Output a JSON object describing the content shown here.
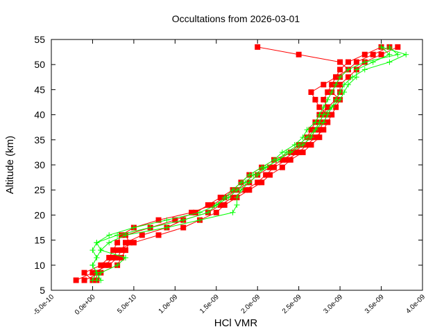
{
  "chart_data": {
    "type": "line",
    "title": "Occultations from 2026-03-01",
    "xlabel": "HCl VMR",
    "ylabel": "Altitude (km)",
    "xlim": [
      -5e-10,
      4e-09
    ],
    "ylim": [
      5,
      55
    ],
    "xticks": [
      "-5.0e-10",
      "0.0e+00",
      "5.0e-10",
      "1.0e-09",
      "1.5e-09",
      "2.0e-09",
      "2.5e-09",
      "3.0e-09",
      "3.5e-09",
      "4.0e-09"
    ],
    "xtick_values": [
      -5e-10,
      0,
      5e-10,
      1e-09,
      1.5e-09,
      2e-09,
      2.5e-09,
      3e-09,
      3.5e-09,
      4e-09
    ],
    "yticks": [
      5,
      10,
      15,
      20,
      25,
      30,
      35,
      40,
      45,
      50,
      55
    ],
    "grid": false,
    "legend": "none",
    "altitude": [
      7,
      8.5,
      10,
      11.5,
      13,
      14.5,
      16,
      17.5,
      19,
      20.5,
      22,
      23.5,
      25,
      26.5,
      28,
      29.5,
      31,
      32.5,
      34,
      35.5,
      37,
      38.5,
      40,
      41.5,
      43,
      44.5,
      46,
      47.5,
      49,
      50.5,
      52,
      53.5
    ],
    "series": [
      {
        "color": "#ff0000",
        "marker": "square",
        "values": [
          0,
          -1e-10,
          1e-10,
          2e-10,
          2.5e-10,
          3e-10,
          3.5e-10,
          5e-10,
          8e-10,
          1.2e-09,
          1.45e-09,
          1.6e-09,
          1.75e-09,
          1.9e-09,
          2e-09,
          2.15e-09,
          2.3e-09,
          2.45e-09,
          2.55e-09,
          2.65e-09,
          2.7e-09,
          2.75e-09,
          2.8e-09,
          2.85e-09,
          2.8e-09,
          2.85e-09,
          2.9e-09,
          2.95e-09,
          3e-09,
          3.1e-09,
          3.3e-09,
          3.5e-09
        ]
      },
      {
        "color": "#ff0000",
        "marker": "square",
        "values": [
          -2e-10,
          0,
          2e-10,
          3e-10,
          3.5e-10,
          4e-10,
          6e-10,
          9e-10,
          1.1e-09,
          1.4e-09,
          1.55e-09,
          1.7e-09,
          1.85e-09,
          2e-09,
          2.1e-09,
          2.2e-09,
          2.35e-09,
          2.5e-09,
          2.6e-09,
          2.7e-09,
          2.8e-09,
          2.85e-09,
          2.9e-09,
          2.95e-09,
          3e-09,
          2.9e-09,
          2.95e-09,
          3e-09,
          3.1e-09,
          3.2e-09,
          3.4e-09,
          3.6e-09
        ]
      },
      {
        "color": "#ff0000",
        "marker": "square",
        "values": [
          5e-11,
          5e-11,
          1.5e-10,
          2.5e-10,
          3e-10,
          5e-10,
          8e-10,
          1.1e-09,
          1.3e-09,
          1.5e-09,
          1.6e-09,
          1.75e-09,
          1.9e-09,
          2.05e-09,
          2.15e-09,
          2.3e-09,
          2.4e-09,
          2.55e-09,
          2.65e-09,
          2.75e-09,
          2.75e-09,
          2.8e-09,
          2.85e-09,
          2.75e-09,
          2.7e-09,
          2.65e-09,
          2.8e-09,
          2.95e-09,
          3.1e-09,
          3e-09,
          2.5e-09,
          2e-09
        ]
      },
      {
        "color": "#ff0000",
        "marker": "square",
        "values": [
          -1e-10,
          1e-10,
          3e-10,
          3.5e-10,
          4e-10,
          4.5e-10,
          4e-10,
          7e-10,
          1e-09,
          1.25e-09,
          1.4e-09,
          1.55e-09,
          1.7e-09,
          1.8e-09,
          1.9e-09,
          2.05e-09,
          2.2e-09,
          2.4e-09,
          2.5e-09,
          2.6e-09,
          2.65e-09,
          2.7e-09,
          2.75e-09,
          2.85e-09,
          2.95e-09,
          3e-09,
          3e-09,
          3.1e-09,
          3.2e-09,
          3.3e-09,
          3.5e-09,
          3.7e-09
        ]
      },
      {
        "color": "#00ff00",
        "marker": "plus",
        "values": [
          0,
          5e-11,
          0,
          5e-11,
          0,
          5e-11,
          2e-10,
          5e-10,
          9e-10,
          1.3e-09,
          1.5e-09,
          1.6e-09,
          1.7e-09,
          1.8e-09,
          1.9e-09,
          2.05e-09,
          2.2e-09,
          2.3e-09,
          2.45e-09,
          2.55e-09,
          2.6e-09,
          2.7e-09,
          2.75e-09,
          2.8e-09,
          2.85e-09,
          2.9e-09,
          2.95e-09,
          3e-09,
          3.1e-09,
          3.3e-09,
          3.7e-09,
          3.6e-09
        ]
      },
      {
        "color": "#00ff00",
        "marker": "plus",
        "values": [
          5e-11,
          1e-10,
          3e-10,
          4e-10,
          1e-10,
          5e-11,
          3e-10,
          7e-10,
          1.1e-09,
          1.4e-09,
          1.5e-09,
          1.65e-09,
          1.75e-09,
          1.85e-09,
          1.95e-09,
          2.1e-09,
          2.25e-09,
          2.35e-09,
          2.5e-09,
          2.6e-09,
          2.7e-09,
          2.75e-09,
          2.8e-09,
          2.9e-09,
          2.95e-09,
          3e-09,
          3.05e-09,
          3.15e-09,
          3.3e-09,
          3.6e-09,
          3.8e-09,
          3.5e-09
        ]
      },
      {
        "color": "#00ff00",
        "marker": "plus",
        "values": [
          1e-10,
          5e-11,
          0,
          5e-11,
          1e-10,
          2e-10,
          4e-10,
          9e-10,
          1.3e-09,
          1.7e-09,
          1.75e-09,
          1.75e-09,
          1.8e-09,
          1.9e-09,
          2e-09,
          2.1e-09,
          2.25e-09,
          2.4e-09,
          2.55e-09,
          2.65e-09,
          2.7e-09,
          2.8e-09,
          2.85e-09,
          2.9e-09,
          3e-09,
          3.05e-09,
          3.1e-09,
          3.2e-09,
          3.2e-09,
          3.4e-09,
          3.6e-09,
          3.5e-09
        ]
      }
    ]
  }
}
